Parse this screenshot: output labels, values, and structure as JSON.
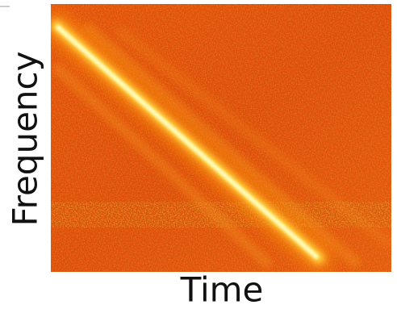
{
  "chart_data": {
    "type": "spectrogram",
    "x_label": "Time",
    "y_label": "Frequency"
  }
}
